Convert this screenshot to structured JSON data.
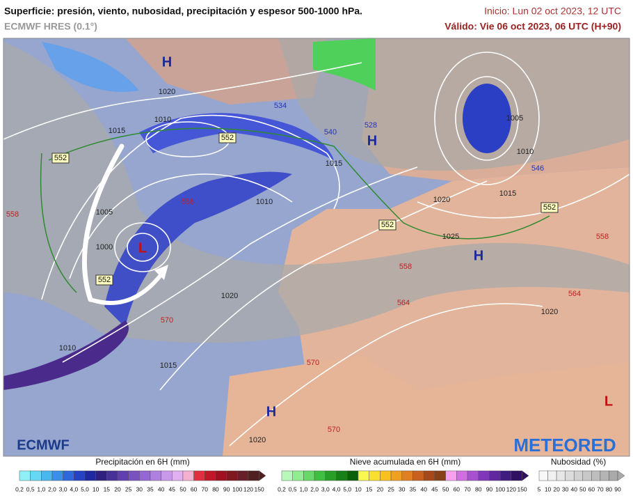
{
  "header": {
    "title": "Superficie: presión, viento, nubosidad, precipitación y espesor 500-1000 hPa.",
    "model": "ECMWF HRES (0.1°)",
    "init": "Inicio: Lun 02 oct 2023, 12 UTC",
    "valid": "Válido: Vie 06 oct 2023, 06 UTC (H+90)"
  },
  "map": {
    "highs": [
      "H",
      "H",
      "H",
      "H"
    ],
    "lows": [
      "L",
      "L"
    ],
    "isobars": [
      "1020",
      "1015",
      "1010",
      "1005",
      "1000",
      "1010",
      "1015",
      "1020",
      "1015",
      "1010",
      "1020",
      "1020",
      "1025",
      "1015",
      "1010",
      "1005",
      "1020"
    ],
    "thickness_boxes": [
      "552",
      "552",
      "552",
      "552",
      "552"
    ],
    "thickness_blue": [
      "534",
      "540",
      "528",
      "546"
    ],
    "thickness_red": [
      "558",
      "558",
      "570",
      "558",
      "564",
      "570",
      "570",
      "558",
      "564"
    ],
    "logo_left": "ECMWF",
    "logo_right": "METEORED"
  },
  "legend": {
    "precip": {
      "title": "Precipitación en 6H (mm)",
      "ticks": [
        "0,2",
        "0,5",
        "1,0",
        "2,0",
        "3,0",
        "4,0",
        "5,0",
        "10",
        "15",
        "20",
        "25",
        "30",
        "35",
        "40",
        "45",
        "50",
        "60",
        "70",
        "80",
        "90",
        "100",
        "120",
        "150"
      ]
    },
    "snow": {
      "title": "Nieve acumulada en 6H (mm)",
      "ticks": [
        "0,2",
        "0,5",
        "1,0",
        "2,0",
        "3,0",
        "4,0",
        "5,0",
        "10",
        "15",
        "20",
        "25",
        "30",
        "35",
        "40",
        "45",
        "50",
        "60",
        "70",
        "80",
        "90",
        "100",
        "120",
        "150"
      ]
    },
    "cloud": {
      "title": "Nubosidad (%)",
      "ticks": [
        "5",
        "10",
        "20",
        "30",
        "40",
        "50",
        "60",
        "70",
        "80",
        "90"
      ]
    }
  }
}
